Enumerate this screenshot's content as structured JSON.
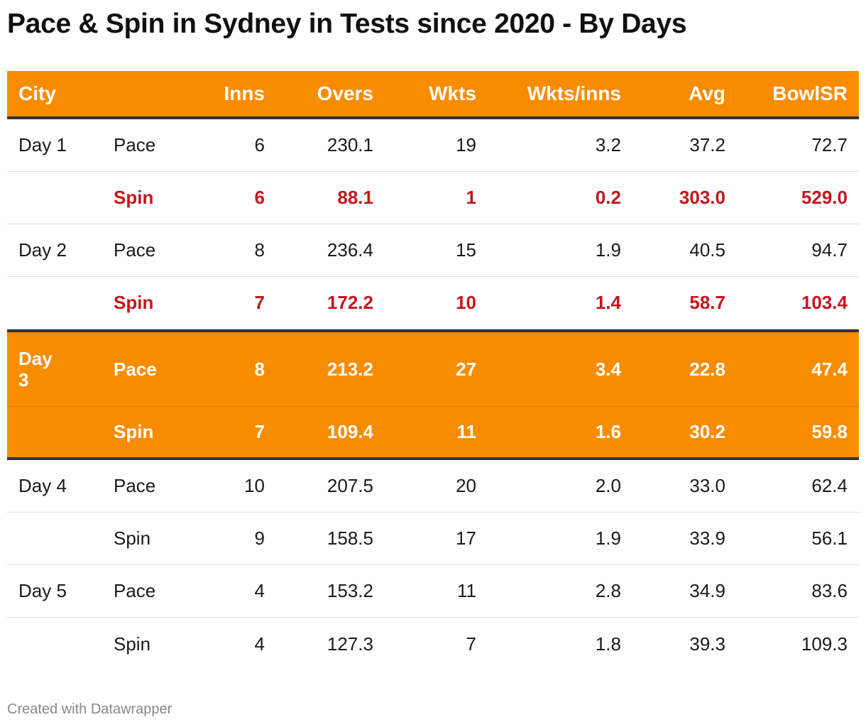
{
  "title": "Pace & Spin in Sydney in Tests since 2020 - By Days",
  "footer": "Created with Datawrapper",
  "colors": {
    "header_bg": "#f78c00",
    "highlight_bg": "#f78c00",
    "spin_red": "#c5161d"
  },
  "chart_data": {
    "type": "table",
    "title": "Pace & Spin in Sydney in Tests since 2020 - By Days",
    "columns": [
      "City",
      "",
      "Inns",
      "Overs",
      "Wkts",
      "Wkts/inns",
      "Avg",
      "BowlSR"
    ],
    "rows": [
      [
        "Day 1",
        "Pace",
        "6",
        "230.1",
        "19",
        "3.2",
        "37.2",
        "72.7"
      ],
      [
        "",
        "Spin",
        "6",
        "88.1",
        "1",
        "0.2",
        "303.0",
        "529.0"
      ],
      [
        "Day 2",
        "Pace",
        "8",
        "236.4",
        "15",
        "1.9",
        "40.5",
        "94.7"
      ],
      [
        "",
        "Spin",
        "7",
        "172.2",
        "10",
        "1.4",
        "58.7",
        "103.4"
      ],
      [
        "Day 3",
        "Pace",
        "8",
        "213.2",
        "27",
        "3.4",
        "22.8",
        "47.4"
      ],
      [
        "",
        "Spin",
        "7",
        "109.4",
        "11",
        "1.6",
        "30.2",
        "59.8"
      ],
      [
        "Day 4",
        "Pace",
        "10",
        "207.5",
        "20",
        "2.0",
        "33.0",
        "62.4"
      ],
      [
        "",
        "Spin",
        "9",
        "158.5",
        "17",
        "1.9",
        "33.9",
        "56.1"
      ],
      [
        "Day 5",
        "Pace",
        "4",
        "153.2",
        "11",
        "2.8",
        "34.9",
        "83.6"
      ],
      [
        "",
        "Spin",
        "4",
        "127.3",
        "7",
        "1.8",
        "39.3",
        "109.3"
      ]
    ],
    "highlighted_rows": [
      4,
      5
    ],
    "red_rows": [
      1,
      3
    ]
  }
}
